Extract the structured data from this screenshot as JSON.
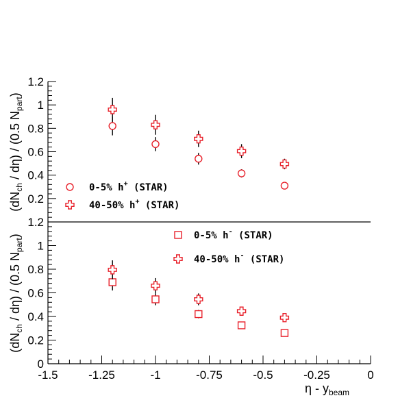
{
  "chart_data": [
    {
      "type": "scatter",
      "panel": "top",
      "ylabel": [
        "(dN",
        "ch",
        " / dη) / (0.5 N",
        "part",
        ")"
      ],
      "ylim": [
        0,
        1.2
      ],
      "yticks": [
        "0.2",
        "0.4",
        "0.6",
        "0.8",
        "1",
        "1.2"
      ],
      "grid": false,
      "legend_placement": "lower-left",
      "series": [
        {
          "name": [
            "0-5% h",
            "+",
            "  (STAR)"
          ],
          "marker": "circle",
          "color": "#e8202a",
          "points": [
            {
              "x": -1.2,
              "y": 0.82,
              "err": 0.08
            },
            {
              "x": -1.0,
              "y": 0.665,
              "err": 0.06
            },
            {
              "x": -0.8,
              "y": 0.54,
              "err": 0.05
            },
            {
              "x": -0.6,
              "y": 0.415,
              "err": 0.035
            },
            {
              "x": -0.4,
              "y": 0.31,
              "err": 0.02
            }
          ]
        },
        {
          "name": [
            "40-50% h",
            "+",
            " (STAR)"
          ],
          "marker": "cross",
          "color": "#e8202a",
          "points": [
            {
              "x": -1.2,
              "y": 0.96,
              "err": 0.1
            },
            {
              "x": -1.0,
              "y": 0.83,
              "err": 0.085
            },
            {
              "x": -0.8,
              "y": 0.71,
              "err": 0.07
            },
            {
              "x": -0.6,
              "y": 0.605,
              "err": 0.06
            },
            {
              "x": -0.4,
              "y": 0.495,
              "err": 0.045
            }
          ]
        }
      ]
    },
    {
      "type": "scatter",
      "panel": "bottom",
      "xlabel": [
        "η - y",
        "beam"
      ],
      "ylabel": [
        "(dN",
        "ch",
        " / dη) / (0.5 N",
        "part",
        ")"
      ],
      "xlim": [
        -1.5,
        0
      ],
      "xticks": [
        "-1.5",
        "-1.25",
        "-1",
        "-0.75",
        "-0.5",
        "-0.25",
        "0"
      ],
      "ylim": [
        0,
        1.2
      ],
      "yticks": [
        "0",
        "0.2",
        "0.4",
        "0.6",
        "0.8",
        "1",
        "1.2"
      ],
      "grid": false,
      "legend_placement": "upper-right",
      "series": [
        {
          "name": [
            "0-5% h",
            "-",
            "  (STAR)"
          ],
          "marker": "square",
          "color": "#e8202a",
          "points": [
            {
              "x": -1.2,
              "y": 0.69,
              "err": 0.07
            },
            {
              "x": -1.0,
              "y": 0.545,
              "err": 0.05
            },
            {
              "x": -0.8,
              "y": 0.42,
              "err": 0.035
            },
            {
              "x": -0.6,
              "y": 0.325,
              "err": 0.02
            },
            {
              "x": -0.4,
              "y": 0.26,
              "err": 0.015
            }
          ]
        },
        {
          "name": [
            "40-50% h",
            "-",
            " (STAR)"
          ],
          "marker": "cross",
          "color": "#e8202a",
          "points": [
            {
              "x": -1.2,
              "y": 0.795,
              "err": 0.08
            },
            {
              "x": -1.0,
              "y": 0.66,
              "err": 0.065
            },
            {
              "x": -0.8,
              "y": 0.545,
              "err": 0.05
            },
            {
              "x": -0.6,
              "y": 0.445,
              "err": 0.035
            },
            {
              "x": -0.4,
              "y": 0.39,
              "err": 0.025
            }
          ]
        }
      ]
    }
  ]
}
